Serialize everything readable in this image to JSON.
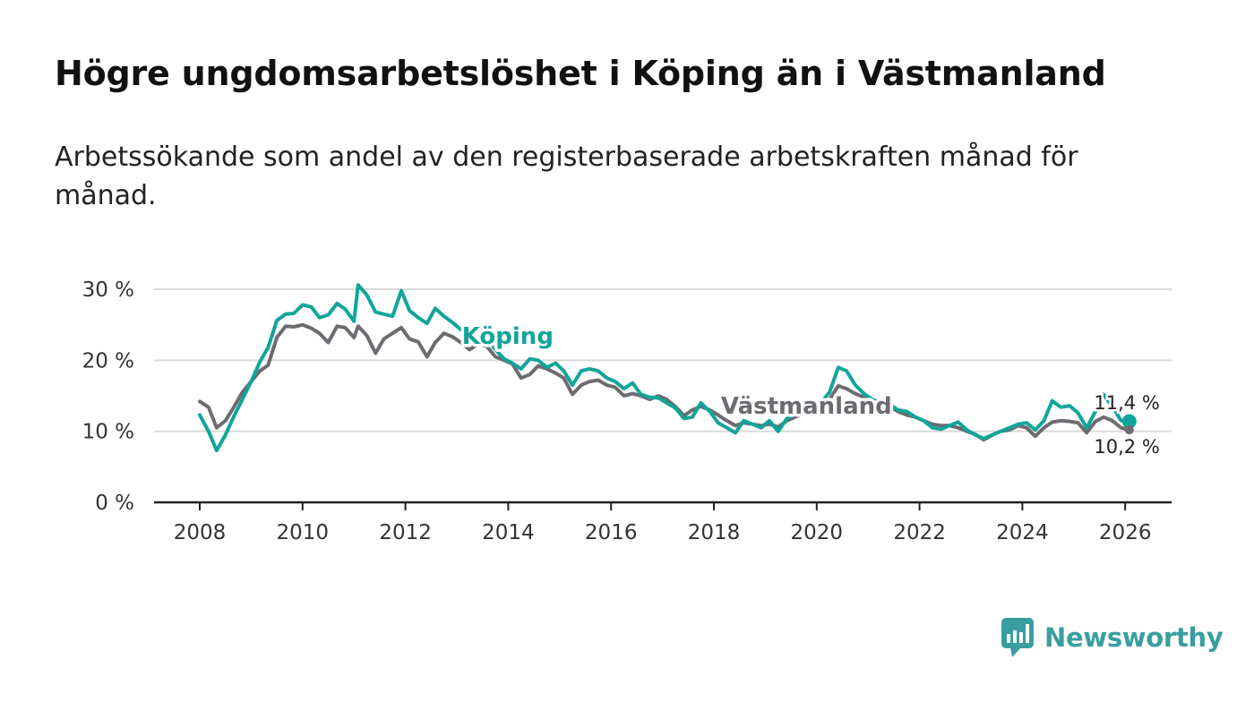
{
  "header": {
    "title": "Högre ungdomsarbetslöshet i Köping än i Västmanland",
    "subtitle": "Arbetssökande som andel av den registerbaserade arbetskraften månad för månad."
  },
  "brand": {
    "name": "Newsworthy",
    "icon": "bar-chart-speech-bubble-icon"
  },
  "colors": {
    "koping": "#10a59a",
    "vastmanland": "#6d6b70",
    "grid": "#d9d9d9",
    "axis": "#222222",
    "brand": "#3a9ea0"
  },
  "chart_data": {
    "type": "line",
    "title": "Högre ungdomsarbetslöshet i Köping än i Västmanland",
    "xlabel": "",
    "ylabel": "",
    "xlim": [
      2007.8,
      2026.9
    ],
    "ylim": [
      0,
      30
    ],
    "xticks": [
      2008,
      2010,
      2012,
      2014,
      2016,
      2018,
      2020,
      2022,
      2024,
      2026
    ],
    "yticks": [
      0,
      10,
      20,
      30
    ],
    "ytick_labels": [
      "0 %",
      "10 %",
      "20 %",
      "30 %"
    ],
    "grid": true,
    "series": [
      {
        "name": "Köping",
        "label_position": [
          2013.1,
          22.3
        ],
        "end_label": "11,4 %",
        "end_value": 11.4,
        "points": [
          [
            2008.0,
            12.3
          ],
          [
            2008.17,
            10.0
          ],
          [
            2008.33,
            7.3
          ],
          [
            2008.5,
            9.5
          ],
          [
            2008.67,
            12.2
          ],
          [
            2008.83,
            14.5
          ],
          [
            2009.0,
            17.0
          ],
          [
            2009.17,
            19.8
          ],
          [
            2009.33,
            21.8
          ],
          [
            2009.5,
            25.6
          ],
          [
            2009.67,
            26.5
          ],
          [
            2009.83,
            26.6
          ],
          [
            2010.0,
            27.8
          ],
          [
            2010.17,
            27.5
          ],
          [
            2010.33,
            26.0
          ],
          [
            2010.5,
            26.4
          ],
          [
            2010.67,
            28.0
          ],
          [
            2010.83,
            27.2
          ],
          [
            2011.0,
            25.5
          ],
          [
            2011.08,
            30.6
          ],
          [
            2011.25,
            29.2
          ],
          [
            2011.42,
            26.8
          ],
          [
            2011.58,
            26.5
          ],
          [
            2011.75,
            26.2
          ],
          [
            2011.92,
            29.8
          ],
          [
            2012.08,
            27.0
          ],
          [
            2012.25,
            26.0
          ],
          [
            2012.42,
            25.2
          ],
          [
            2012.58,
            27.3
          ],
          [
            2012.75,
            26.2
          ],
          [
            2012.92,
            25.3
          ],
          [
            2013.08,
            24.3
          ],
          [
            2013.25,
            23.2
          ],
          [
            2013.42,
            24.9
          ],
          [
            2013.58,
            23.0
          ],
          [
            2013.75,
            21.5
          ],
          [
            2013.92,
            20.2
          ],
          [
            2014.08,
            19.6
          ],
          [
            2014.25,
            18.8
          ],
          [
            2014.42,
            20.2
          ],
          [
            2014.58,
            20.0
          ],
          [
            2014.75,
            19.0
          ],
          [
            2014.92,
            19.6
          ],
          [
            2015.08,
            18.5
          ],
          [
            2015.25,
            16.5
          ],
          [
            2015.42,
            18.5
          ],
          [
            2015.58,
            18.8
          ],
          [
            2015.75,
            18.5
          ],
          [
            2015.92,
            17.5
          ],
          [
            2016.08,
            17.0
          ],
          [
            2016.25,
            16.0
          ],
          [
            2016.42,
            16.8
          ],
          [
            2016.58,
            15.2
          ],
          [
            2016.75,
            14.8
          ],
          [
            2016.92,
            14.7
          ],
          [
            2017.08,
            14.0
          ],
          [
            2017.25,
            13.3
          ],
          [
            2017.42,
            11.8
          ],
          [
            2017.58,
            12.0
          ],
          [
            2017.75,
            14.0
          ],
          [
            2017.92,
            12.8
          ],
          [
            2018.08,
            11.2
          ],
          [
            2018.25,
            10.5
          ],
          [
            2018.42,
            9.8
          ],
          [
            2018.58,
            11.5
          ],
          [
            2018.75,
            11.0
          ],
          [
            2018.92,
            10.5
          ],
          [
            2019.08,
            11.5
          ],
          [
            2019.25,
            10.0
          ],
          [
            2019.42,
            11.8
          ],
          [
            2019.58,
            12.5
          ],
          [
            2019.75,
            13.5
          ],
          [
            2019.92,
            14.2
          ],
          [
            2020.08,
            14.0
          ],
          [
            2020.25,
            15.5
          ],
          [
            2020.42,
            19.0
          ],
          [
            2020.58,
            18.5
          ],
          [
            2020.75,
            16.5
          ],
          [
            2020.92,
            15.3
          ],
          [
            2021.08,
            14.5
          ],
          [
            2021.25,
            14.0
          ],
          [
            2021.42,
            13.8
          ],
          [
            2021.58,
            13.0
          ],
          [
            2021.75,
            12.8
          ],
          [
            2021.92,
            12.0
          ],
          [
            2022.08,
            11.5
          ],
          [
            2022.25,
            10.5
          ],
          [
            2022.42,
            10.3
          ],
          [
            2022.58,
            10.8
          ],
          [
            2022.75,
            11.3
          ],
          [
            2022.92,
            10.2
          ],
          [
            2023.08,
            9.5
          ],
          [
            2023.25,
            9.0
          ],
          [
            2023.42,
            9.5
          ],
          [
            2023.58,
            10.0
          ],
          [
            2023.75,
            10.5
          ],
          [
            2023.92,
            11.0
          ],
          [
            2024.08,
            11.2
          ],
          [
            2024.25,
            10.2
          ],
          [
            2024.42,
            11.5
          ],
          [
            2024.58,
            14.3
          ],
          [
            2024.75,
            13.4
          ],
          [
            2024.92,
            13.6
          ],
          [
            2025.08,
            12.6
          ],
          [
            2025.25,
            10.5
          ],
          [
            2025.42,
            12.8
          ],
          [
            2025.58,
            15.2
          ],
          [
            2025.75,
            13.5
          ],
          [
            2025.92,
            11.5
          ],
          [
            2026.08,
            11.4
          ]
        ]
      },
      {
        "name": "Västmanland",
        "label_position": [
          2019.8,
          12.5
        ],
        "end_label": "10,2 %",
        "end_value": 10.2,
        "points": [
          [
            2008.0,
            14.2
          ],
          [
            2008.17,
            13.4
          ],
          [
            2008.33,
            10.5
          ],
          [
            2008.5,
            11.5
          ],
          [
            2008.67,
            13.5
          ],
          [
            2008.83,
            15.5
          ],
          [
            2009.0,
            17.0
          ],
          [
            2009.17,
            18.5
          ],
          [
            2009.33,
            19.3
          ],
          [
            2009.5,
            23.2
          ],
          [
            2009.67,
            24.8
          ],
          [
            2009.83,
            24.7
          ],
          [
            2010.0,
            25.0
          ],
          [
            2010.17,
            24.5
          ],
          [
            2010.33,
            23.8
          ],
          [
            2010.5,
            22.5
          ],
          [
            2010.67,
            24.8
          ],
          [
            2010.83,
            24.6
          ],
          [
            2011.0,
            23.2
          ],
          [
            2011.08,
            24.8
          ],
          [
            2011.25,
            23.5
          ],
          [
            2011.42,
            21.0
          ],
          [
            2011.58,
            23.0
          ],
          [
            2011.75,
            23.8
          ],
          [
            2011.92,
            24.6
          ],
          [
            2012.08,
            23.0
          ],
          [
            2012.25,
            22.6
          ],
          [
            2012.42,
            20.5
          ],
          [
            2012.58,
            22.5
          ],
          [
            2012.75,
            23.8
          ],
          [
            2012.92,
            23.3
          ],
          [
            2013.08,
            22.5
          ],
          [
            2013.25,
            21.5
          ],
          [
            2013.42,
            22.3
          ],
          [
            2013.58,
            22.0
          ],
          [
            2013.75,
            20.5
          ],
          [
            2013.92,
            20.0
          ],
          [
            2014.08,
            19.5
          ],
          [
            2014.25,
            17.5
          ],
          [
            2014.42,
            18.0
          ],
          [
            2014.58,
            19.2
          ],
          [
            2014.75,
            18.8
          ],
          [
            2014.92,
            18.2
          ],
          [
            2015.08,
            17.5
          ],
          [
            2015.25,
            15.2
          ],
          [
            2015.42,
            16.5
          ],
          [
            2015.58,
            17.0
          ],
          [
            2015.75,
            17.2
          ],
          [
            2015.92,
            16.5
          ],
          [
            2016.08,
            16.2
          ],
          [
            2016.25,
            15.0
          ],
          [
            2016.42,
            15.3
          ],
          [
            2016.58,
            15.0
          ],
          [
            2016.75,
            14.5
          ],
          [
            2016.92,
            15.0
          ],
          [
            2017.08,
            14.5
          ],
          [
            2017.25,
            13.5
          ],
          [
            2017.42,
            12.2
          ],
          [
            2017.58,
            13.0
          ],
          [
            2017.75,
            13.5
          ],
          [
            2017.92,
            13.0
          ],
          [
            2018.08,
            12.3
          ],
          [
            2018.25,
            11.5
          ],
          [
            2018.42,
            10.8
          ],
          [
            2018.58,
            11.2
          ],
          [
            2018.75,
            11.0
          ],
          [
            2018.92,
            10.8
          ],
          [
            2019.08,
            11.0
          ],
          [
            2019.25,
            10.6
          ],
          [
            2019.42,
            11.5
          ],
          [
            2019.58,
            12.0
          ],
          [
            2019.75,
            12.5
          ],
          [
            2019.92,
            13.0
          ],
          [
            2020.08,
            13.5
          ],
          [
            2020.25,
            14.5
          ],
          [
            2020.42,
            16.4
          ],
          [
            2020.58,
            16.0
          ],
          [
            2020.75,
            15.3
          ],
          [
            2020.92,
            14.8
          ],
          [
            2021.08,
            14.2
          ],
          [
            2021.25,
            13.8
          ],
          [
            2021.42,
            13.5
          ],
          [
            2021.58,
            12.8
          ],
          [
            2021.75,
            12.3
          ],
          [
            2021.92,
            12.0
          ],
          [
            2022.08,
            11.5
          ],
          [
            2022.25,
            11.0
          ],
          [
            2022.42,
            10.8
          ],
          [
            2022.58,
            10.8
          ],
          [
            2022.75,
            10.5
          ],
          [
            2022.92,
            10.0
          ],
          [
            2023.08,
            9.6
          ],
          [
            2023.25,
            8.8
          ],
          [
            2023.42,
            9.5
          ],
          [
            2023.58,
            10.0
          ],
          [
            2023.75,
            10.2
          ],
          [
            2023.92,
            10.8
          ],
          [
            2024.08,
            10.5
          ],
          [
            2024.25,
            9.3
          ],
          [
            2024.42,
            10.5
          ],
          [
            2024.58,
            11.3
          ],
          [
            2024.75,
            11.5
          ],
          [
            2024.92,
            11.4
          ],
          [
            2025.08,
            11.2
          ],
          [
            2025.25,
            9.8
          ],
          [
            2025.42,
            11.4
          ],
          [
            2025.58,
            12.0
          ],
          [
            2025.75,
            11.5
          ],
          [
            2025.92,
            10.5
          ],
          [
            2026.08,
            10.2
          ]
        ]
      }
    ]
  }
}
